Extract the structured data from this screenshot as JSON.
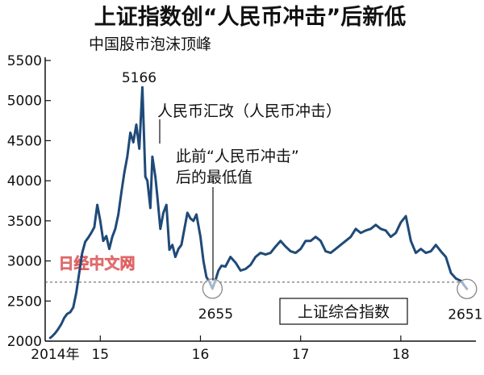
{
  "chart_data": {
    "type": "line",
    "title": "上证指数创“人民币冲击”后新低",
    "subtitle": "",
    "ylim": [
      2000,
      5500
    ],
    "yticks": [
      2000,
      2500,
      3000,
      3500,
      4000,
      4500,
      5000,
      5500
    ],
    "xlim": [
      2014.45,
      2018.75
    ],
    "xticks": [
      {
        "value": 2014.55,
        "label": "2014年"
      },
      {
        "value": 2015.0,
        "label": "15"
      },
      {
        "value": 2016.0,
        "label": "16"
      },
      {
        "value": 2017.0,
        "label": "17"
      },
      {
        "value": 2018.0,
        "label": "18"
      }
    ],
    "reference_line": {
      "value": 2735,
      "style": "dashed"
    },
    "series": [
      {
        "name": "上证综合指数",
        "color": "#1f4a78",
        "x": [
          2014.5,
          2014.52,
          2014.55,
          2014.58,
          2014.61,
          2014.64,
          2014.67,
          2014.7,
          2014.73,
          2014.76,
          2014.79,
          2014.82,
          2014.85,
          2014.88,
          2014.91,
          2014.94,
          2014.97,
          2015.0,
          2015.03,
          2015.06,
          2015.09,
          2015.12,
          2015.15,
          2015.18,
          2015.21,
          2015.24,
          2015.27,
          2015.3,
          2015.33,
          2015.36,
          2015.39,
          2015.42,
          2015.45,
          2015.47,
          2015.5,
          2015.52,
          2015.55,
          2015.57,
          2015.6,
          2015.63,
          2015.66,
          2015.69,
          2015.72,
          2015.75,
          2015.78,
          2015.81,
          2015.84,
          2015.87,
          2015.9,
          2015.93,
          2015.96,
          2016.0,
          2016.03,
          2016.06,
          2016.09,
          2016.12,
          2016.15,
          2016.18,
          2016.21,
          2016.25,
          2016.3,
          2016.35,
          2016.4,
          2016.45,
          2016.5,
          2016.55,
          2016.6,
          2016.65,
          2016.7,
          2016.75,
          2016.8,
          2016.85,
          2016.9,
          2016.95,
          2017.0,
          2017.05,
          2017.1,
          2017.15,
          2017.2,
          2017.25,
          2017.3,
          2017.35,
          2017.4,
          2017.45,
          2017.5,
          2017.55,
          2017.6,
          2017.65,
          2017.7,
          2017.75,
          2017.8,
          2017.85,
          2017.9,
          2017.95,
          2018.0,
          2018.05,
          2018.1,
          2018.15,
          2018.2,
          2018.25,
          2018.3,
          2018.35,
          2018.4,
          2018.45,
          2018.5,
          2018.55,
          2018.6,
          2018.63,
          2018.66
        ],
        "y": [
          2040,
          2060,
          2100,
          2150,
          2210,
          2290,
          2340,
          2360,
          2420,
          2600,
          2850,
          3100,
          3240,
          3290,
          3350,
          3420,
          3700,
          3500,
          3250,
          3310,
          3150,
          3300,
          3400,
          3580,
          3850,
          4100,
          4300,
          4600,
          4480,
          4700,
          4400,
          5166,
          4050,
          4000,
          3660,
          4300,
          4050,
          3800,
          3400,
          3600,
          3700,
          3140,
          3200,
          3050,
          3150,
          3200,
          3400,
          3600,
          3530,
          3500,
          3580,
          3300,
          3000,
          2800,
          2738,
          2655,
          2760,
          2880,
          2940,
          2930,
          3050,
          2980,
          2880,
          2900,
          2950,
          3050,
          3100,
          3080,
          3100,
          3180,
          3250,
          3180,
          3120,
          3100,
          3150,
          3250,
          3250,
          3300,
          3250,
          3120,
          3100,
          3150,
          3200,
          3250,
          3300,
          3400,
          3350,
          3380,
          3400,
          3450,
          3400,
          3380,
          3300,
          3350,
          3480,
          3559,
          3250,
          3100,
          3150,
          3100,
          3120,
          3200,
          3120,
          3050,
          2850,
          2780,
          2750,
          2700,
          2651
        ]
      }
    ],
    "annotations": [
      {
        "text": "中国股市泡沫顶峰",
        "lines": [
          "中国股市泡沫顶峰"
        ]
      },
      {
        "text": "5166",
        "x": 2015.42,
        "y": 5166
      },
      {
        "text": "人民币汇改（人民币冲击）",
        "lines": [
          "人民币汇改（人民币冲击）"
        ]
      },
      {
        "text": "此前“人民币冲击”后的最低值",
        "lines": [
          "此前“人民币冲击”",
          "后的最低值"
        ]
      },
      {
        "text": "2655",
        "x": 2016.12,
        "y": 2655
      },
      {
        "text": "2651",
        "x": 2018.66,
        "y": 2651
      }
    ],
    "watermark": "日经中文网",
    "grid": false
  }
}
